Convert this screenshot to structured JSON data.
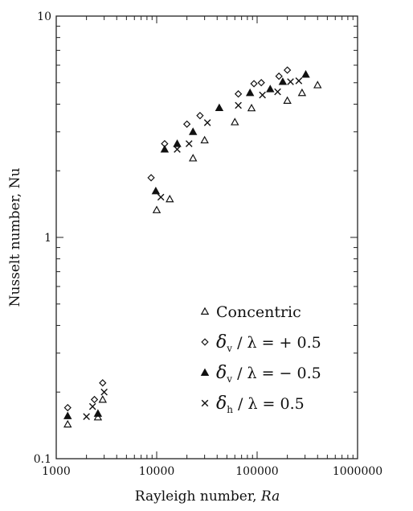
{
  "chart_data": {
    "type": "scatter",
    "title": "",
    "xlabel": "Rayleigh number, ",
    "xlabel_var": "Ra",
    "ylabel": "Nusselt number, Nu",
    "x_scale": "log",
    "y_scale": "log",
    "xlim": [
      1000,
      1000000
    ],
    "ylim": [
      0.1,
      10
    ],
    "x_ticks": [
      "1000",
      "10000",
      "100000",
      "1000000"
    ],
    "y_ticks": [
      "0.1",
      "1",
      "10"
    ],
    "grid": false,
    "legend_position": "bottom-right",
    "series": [
      {
        "name": "Concentric",
        "marker": "triangle-open",
        "points": [
          [
            1300,
            0.143
          ],
          [
            2600,
            0.154
          ],
          [
            2900,
            0.185
          ],
          [
            10000,
            1.33
          ],
          [
            13500,
            1.49
          ],
          [
            23000,
            2.28
          ],
          [
            30000,
            2.75
          ],
          [
            60000,
            3.32
          ],
          [
            88000,
            3.84
          ],
          [
            200000,
            4.15
          ],
          [
            280000,
            4.5
          ],
          [
            400000,
            4.88
          ]
        ]
      },
      {
        "name": "δv / λ = + 0.5",
        "marker": "diamond-open",
        "points": [
          [
            1300,
            0.17
          ],
          [
            2400,
            0.185
          ],
          [
            2900,
            0.22
          ],
          [
            8800,
            1.86
          ],
          [
            12000,
            2.65
          ],
          [
            20000,
            3.25
          ],
          [
            27000,
            3.55
          ],
          [
            65000,
            4.45
          ],
          [
            93000,
            4.95
          ],
          [
            110000,
            5.0
          ],
          [
            165000,
            5.35
          ],
          [
            200000,
            5.7
          ]
        ]
      },
      {
        "name": "δv / λ = − 0.5",
        "marker": "triangle-filled",
        "points": [
          [
            1300,
            0.156
          ],
          [
            2600,
            0.16
          ],
          [
            9800,
            1.62
          ],
          [
            12000,
            2.5
          ],
          [
            16000,
            2.65
          ],
          [
            23000,
            3.0
          ],
          [
            42000,
            3.85
          ],
          [
            85000,
            4.5
          ],
          [
            135000,
            4.68
          ],
          [
            180000,
            5.05
          ],
          [
            305000,
            5.45
          ]
        ]
      },
      {
        "name": "δh / λ = 0.5",
        "marker": "cross",
        "points": [
          [
            2000,
            0.155
          ],
          [
            2300,
            0.172
          ],
          [
            3000,
            0.2
          ],
          [
            11000,
            1.52
          ],
          [
            16000,
            2.5
          ],
          [
            21000,
            2.65
          ],
          [
            32000,
            3.3
          ],
          [
            65000,
            3.95
          ],
          [
            113000,
            4.4
          ],
          [
            160000,
            4.55
          ],
          [
            215000,
            5.05
          ],
          [
            260000,
            5.1
          ]
        ]
      }
    ],
    "legend": [
      {
        "marker": "triangle-open",
        "text": "Concentric"
      },
      {
        "marker": "diamond-open",
        "sym": "δ",
        "sub": "v",
        "rest": " / λ = + 0.5"
      },
      {
        "marker": "triangle-filled",
        "sym": "δ",
        "sub": "v",
        "rest": " / λ = − 0.5"
      },
      {
        "marker": "cross",
        "sym": "δ",
        "sub": "h",
        "rest": " / λ = 0.5"
      }
    ]
  }
}
